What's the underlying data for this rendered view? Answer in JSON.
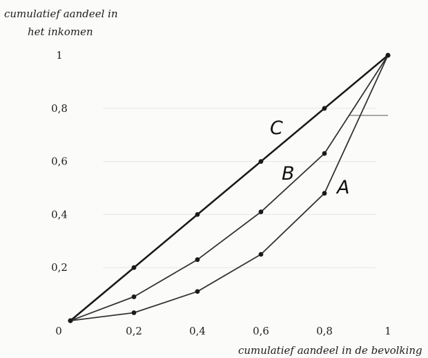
{
  "chart_data": {
    "type": "line",
    "title": "",
    "xlabel": "cumulatief aandeel in de bevolking",
    "ylabel_lines": [
      "cumulatief aandeel in",
      "het inkomen"
    ],
    "xlim": [
      0,
      1
    ],
    "ylim": [
      0,
      1
    ],
    "x_ticks": [
      "0",
      "0,2",
      "0,4",
      "0,6",
      "0,8",
      "1"
    ],
    "y_ticks": [
      "0,2",
      "0,4",
      "0,6",
      "0,8",
      "1"
    ],
    "grid": true,
    "series": [
      {
        "name": "C",
        "x": [
          0,
          0.2,
          0.4,
          0.6,
          0.8,
          1
        ],
        "y": [
          0,
          0.2,
          0.4,
          0.6,
          0.8,
          1
        ],
        "color": "#1a1a1a"
      },
      {
        "name": "B",
        "x": [
          0,
          0.2,
          0.4,
          0.6,
          0.8,
          1
        ],
        "y": [
          0,
          0.09,
          0.23,
          0.41,
          0.63,
          1
        ],
        "color": "#333333"
      },
      {
        "name": "A",
        "x": [
          0,
          0.2,
          0.4,
          0.6,
          0.8,
          1
        ],
        "y": [
          0,
          0.03,
          0.11,
          0.25,
          0.48,
          1
        ],
        "color": "#333333"
      }
    ]
  }
}
